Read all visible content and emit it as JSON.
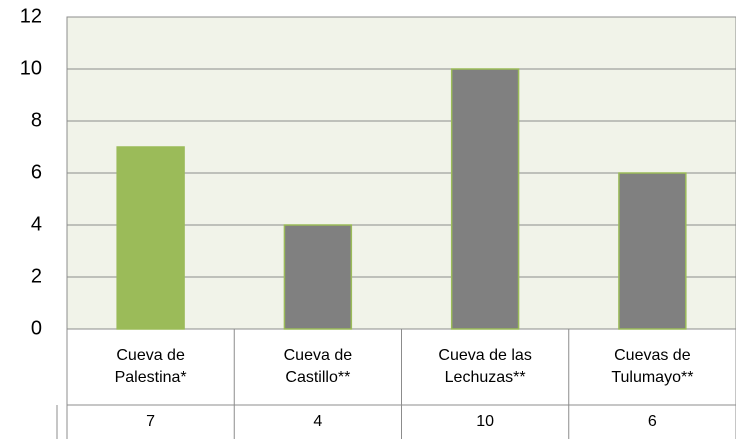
{
  "chart_data": {
    "type": "bar",
    "categories": [
      "Cueva de\nPalestina*",
      "Cueva de\nCastillo**",
      "Cueva de las\nLechuzas**",
      "Cuevas de\nTulumayo**"
    ],
    "values": [
      7,
      4,
      10,
      6
    ],
    "colors": [
      "#9bbb59",
      "#808080",
      "#808080",
      "#808080"
    ],
    "edge_color": "#9bbb59",
    "ylim": [
      0,
      12
    ],
    "yticks": [
      0,
      2,
      4,
      6,
      8,
      10,
      12
    ],
    "grid": true
  }
}
